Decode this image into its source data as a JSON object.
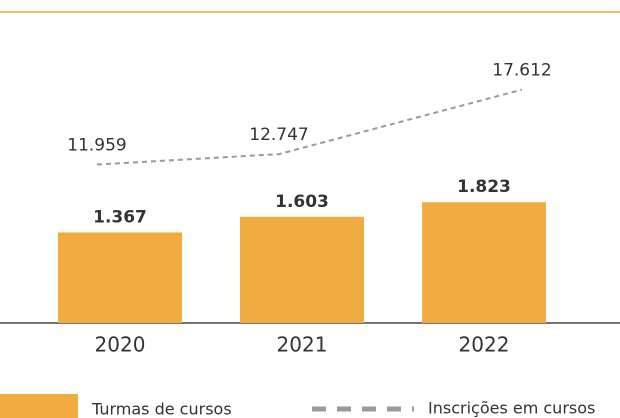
{
  "chart_data": {
    "type": "bar_line",
    "categories": [
      "2020",
      "2021",
      "2022"
    ],
    "series": [
      {
        "name": "Turmas de cursos",
        "type": "bar",
        "color": "#f0ab41",
        "values": [
          1367,
          1603,
          1823
        ],
        "value_labels": [
          "1.367",
          "1.603",
          "1.823"
        ]
      },
      {
        "name": "Inscrições em cursos",
        "type": "line",
        "axis": "y2",
        "color": "#9a9a9a",
        "values": [
          11959,
          12747,
          17612
        ],
        "value_labels": [
          "11.959",
          "12.747",
          "17.612"
        ]
      }
    ],
    "ylim": [
      0,
      4000
    ],
    "y2lim": [
      0,
      20000
    ]
  }
}
